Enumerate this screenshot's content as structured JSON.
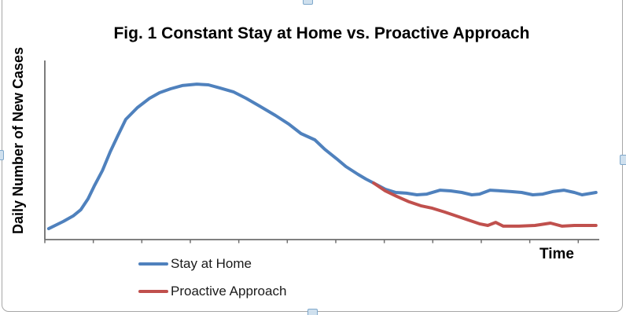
{
  "chart_data": {
    "type": "line",
    "title": "Fig. 1 Constant Stay at Home vs. Proactive Approach",
    "xlabel": "Time",
    "ylabel": "Daily Number of New Cases",
    "x_axis": {
      "range": [
        0,
        100
      ],
      "tick_count": 12,
      "tick_labels": [],
      "labels_visible": false
    },
    "y_axis": {
      "range": [
        0,
        100
      ],
      "tick_labels": [],
      "labels_visible": false
    },
    "grid": false,
    "legend_position": "below-plot-left",
    "axis_color": "#6e6e6e",
    "series": [
      {
        "name": "Stay at Home",
        "color": "#4F81BD",
        "points": [
          [
            0.7,
            6.1
          ],
          [
            3.3,
            10.1
          ],
          [
            5.1,
            13.2
          ],
          [
            6.5,
            16.7
          ],
          [
            7.8,
            22.8
          ],
          [
            8.9,
            29.8
          ],
          [
            10.4,
            38.6
          ],
          [
            11.8,
            49.1
          ],
          [
            13.2,
            58.3
          ],
          [
            14.6,
            67.1
          ],
          [
            16.7,
            73.7
          ],
          [
            18.9,
            78.9
          ],
          [
            20.7,
            82.0
          ],
          [
            22.7,
            84.2
          ],
          [
            24.8,
            86.0
          ],
          [
            27.4,
            86.8
          ],
          [
            29.5,
            86.4
          ],
          [
            31.6,
            84.6
          ],
          [
            34.0,
            82.5
          ],
          [
            36.3,
            78.9
          ],
          [
            38.7,
            74.6
          ],
          [
            41.6,
            69.3
          ],
          [
            44.0,
            64.5
          ],
          [
            46.2,
            59.2
          ],
          [
            48.7,
            55.7
          ],
          [
            50.5,
            50.4
          ],
          [
            52.6,
            45.2
          ],
          [
            54.3,
            40.8
          ],
          [
            56.5,
            36.4
          ],
          [
            57.9,
            33.8
          ],
          [
            59.3,
            31.6
          ],
          [
            61.4,
            28.1
          ],
          [
            63.3,
            26.3
          ],
          [
            65.2,
            25.9
          ],
          [
            67.1,
            25.0
          ],
          [
            68.9,
            25.4
          ],
          [
            71.3,
            27.6
          ],
          [
            73.2,
            27.2
          ],
          [
            75.2,
            26.3
          ],
          [
            77.0,
            25.0
          ],
          [
            78.4,
            25.4
          ],
          [
            80.3,
            27.6
          ],
          [
            82.3,
            27.2
          ],
          [
            84.1,
            26.8
          ],
          [
            86.0,
            26.3
          ],
          [
            88.0,
            25.0
          ],
          [
            89.8,
            25.4
          ],
          [
            91.6,
            26.8
          ],
          [
            93.6,
            27.6
          ],
          [
            95.5,
            26.3
          ],
          [
            96.9,
            25.0
          ],
          [
            98.7,
            25.9
          ],
          [
            99.4,
            26.3
          ]
        ]
      },
      {
        "name": "Proactive Approach",
        "color": "#C0504D",
        "points": [
          [
            59.3,
            31.6
          ],
          [
            61.4,
            27.2
          ],
          [
            63.5,
            24.1
          ],
          [
            65.7,
            21.1
          ],
          [
            67.8,
            18.9
          ],
          [
            69.9,
            17.5
          ],
          [
            72.1,
            15.4
          ],
          [
            74.2,
            13.2
          ],
          [
            76.3,
            11.0
          ],
          [
            78.4,
            8.8
          ],
          [
            79.9,
            7.9
          ],
          [
            81.3,
            9.6
          ],
          [
            82.7,
            7.5
          ],
          [
            85.5,
            7.5
          ],
          [
            88.4,
            7.9
          ],
          [
            91.2,
            9.2
          ],
          [
            93.3,
            7.5
          ],
          [
            95.5,
            7.9
          ],
          [
            99.4,
            7.9
          ]
        ]
      }
    ]
  },
  "selection": {
    "handles": [
      "top",
      "left",
      "right",
      "bottom"
    ],
    "frame_color": "#a6a6a6",
    "handle_fill": "#cfe0ee"
  }
}
